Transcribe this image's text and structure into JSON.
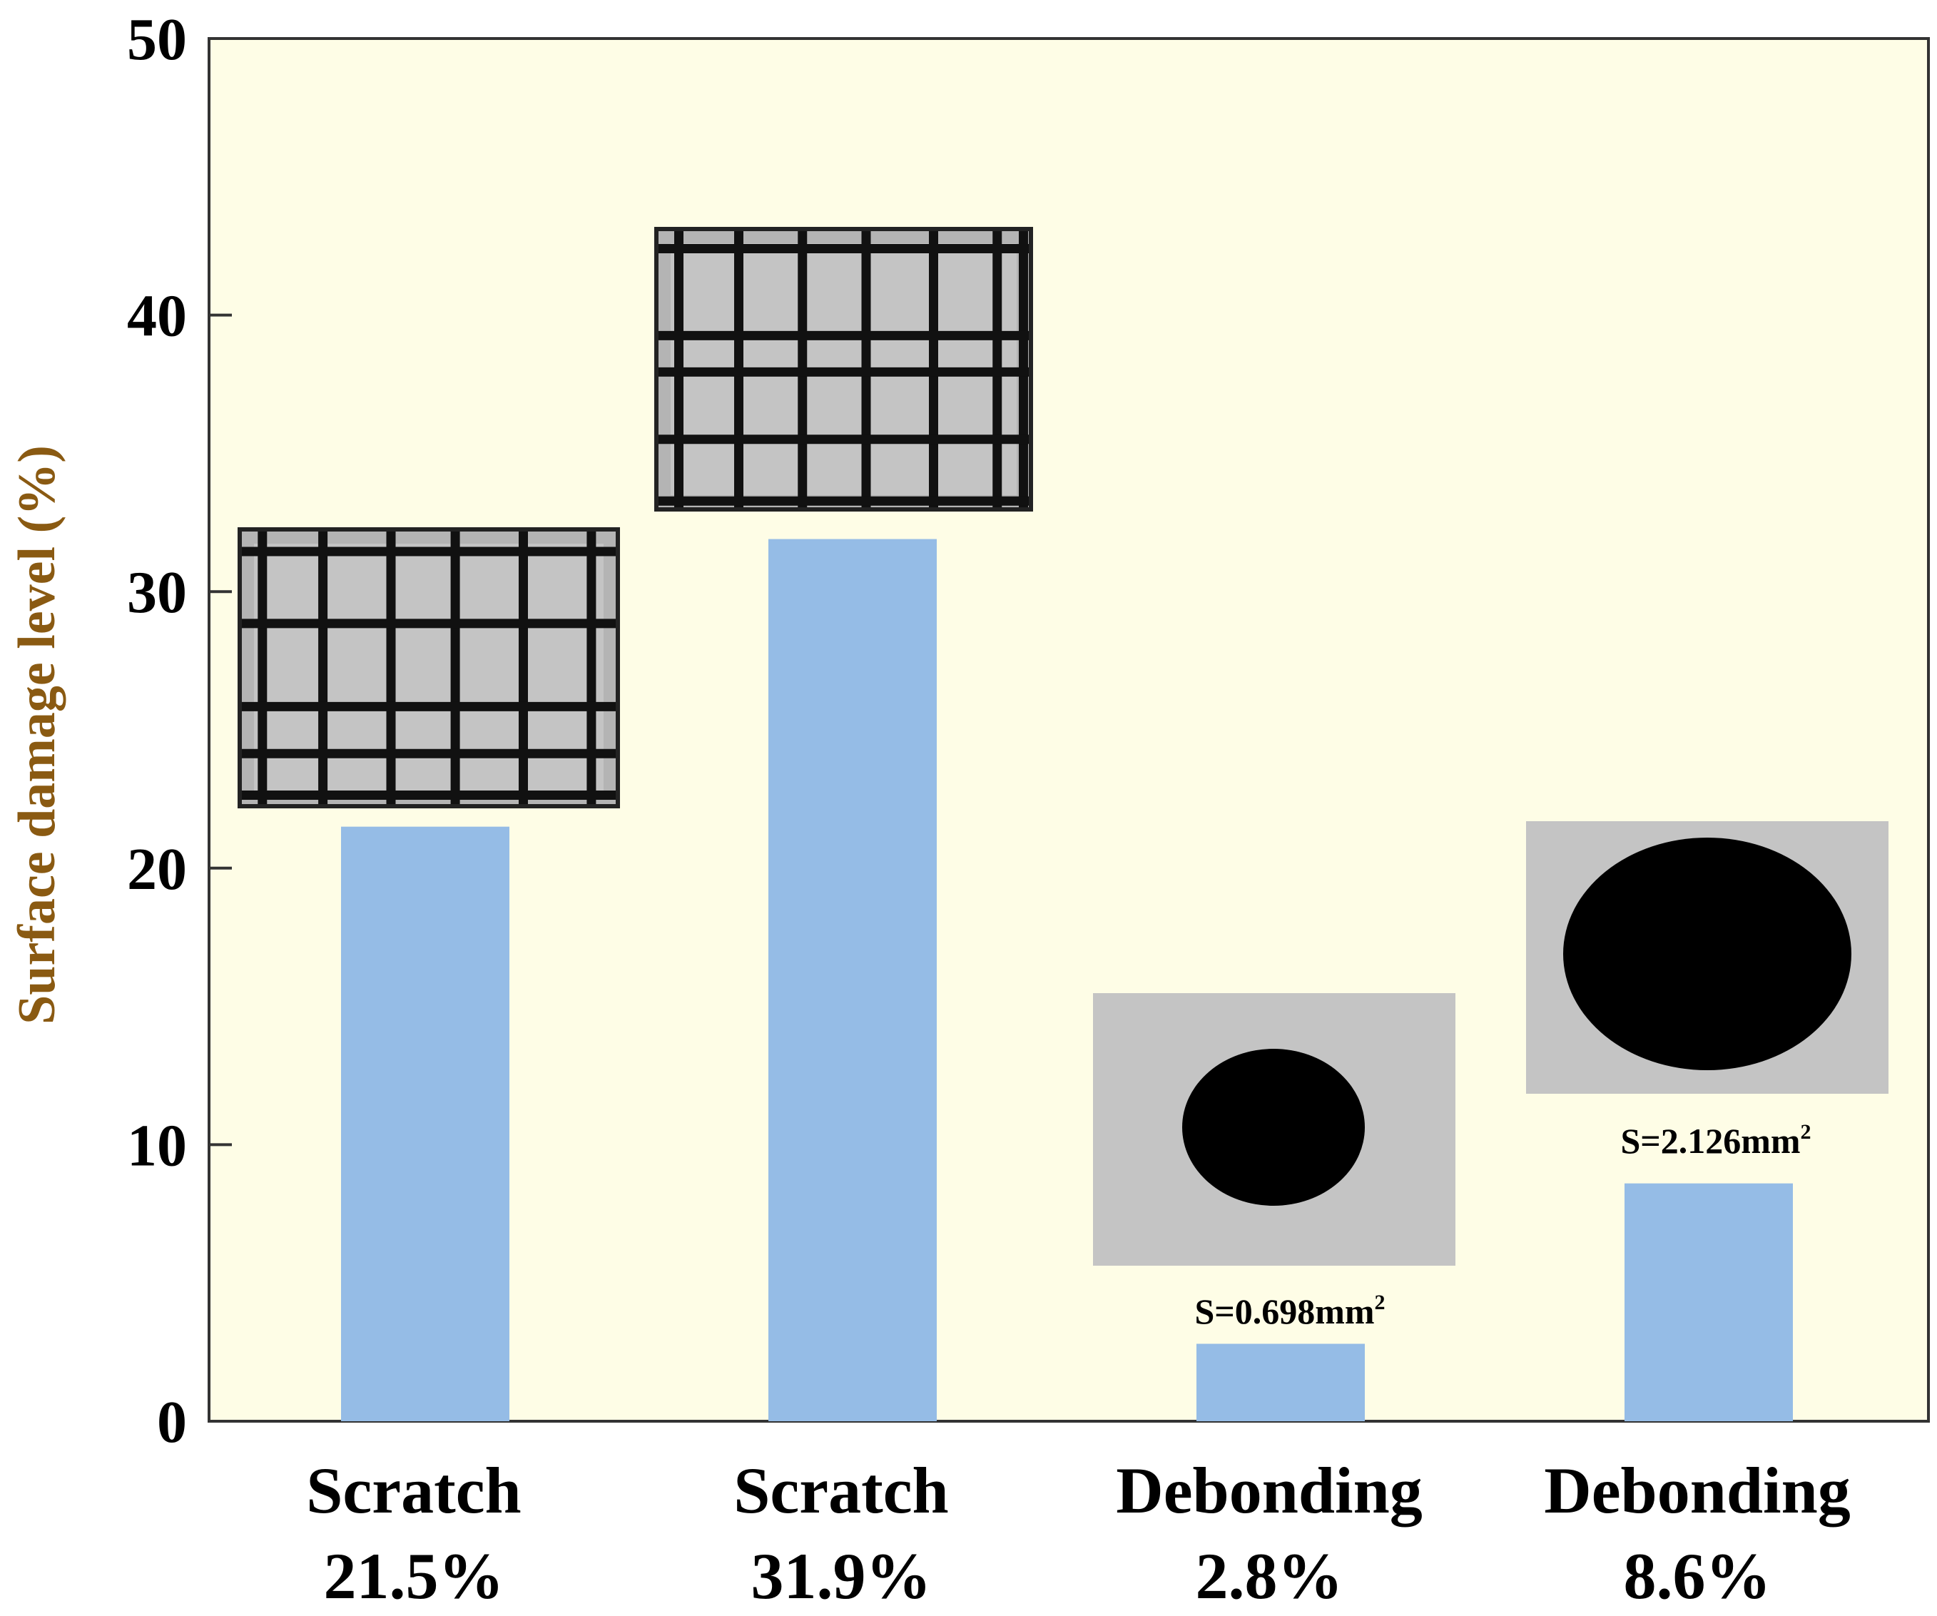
{
  "chart_data": {
    "type": "bar",
    "title": "",
    "xlabel": "",
    "ylabel": "Surface damage level (%)",
    "ylim": [
      0,
      50
    ],
    "yticks": [
      0,
      10,
      20,
      30,
      40,
      50
    ],
    "grid": false,
    "legend": "none",
    "categories": [
      "Scratch",
      "Scratch",
      "Debonding",
      "Debonding"
    ],
    "category_values_text": [
      "21.5%",
      "31.9%",
      "2.8%",
      "8.6%"
    ],
    "values": [
      21.5,
      31.9,
      2.8,
      8.6
    ],
    "annotations": [
      {
        "text": "S=0.698mm",
        "sup": "2"
      },
      {
        "text": "S=2.126mm",
        "sup": "2"
      }
    ],
    "colors": {
      "bar": "#95bce6",
      "plot_background": "#fefde6",
      "axis_label": "#8a5a12",
      "inset_grey": "#c4c4c4",
      "inset_dark": "#000000"
    }
  }
}
